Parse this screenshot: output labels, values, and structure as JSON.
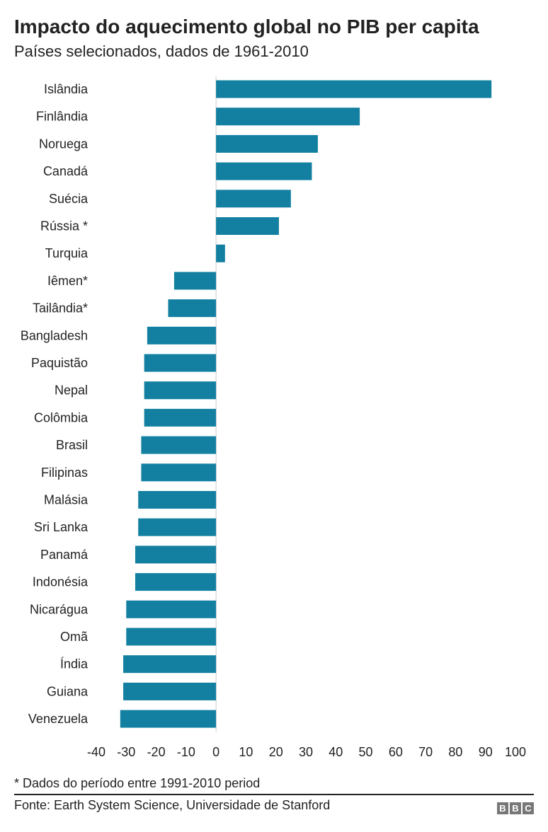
{
  "chart_data": {
    "type": "bar",
    "orientation": "horizontal",
    "title": "Impacto do aquecimento global no PIB per capita",
    "subtitle": "Países selecionados, dados de 1961-2010",
    "categories": [
      "Islândia",
      "Finlândia",
      "Noruega",
      "Canadá",
      "Suécia",
      "Rússia *",
      "Turquia",
      "Iêmen*",
      "Tailândia*",
      "Bangladesh",
      "Paquistão",
      "Nepal",
      "Colômbia",
      "Brasil",
      "Filipinas",
      "Malásia",
      "Sri Lanka",
      "Panamá",
      "Indonésia",
      "Nicarágua",
      "Omã",
      "Índia",
      "Guiana",
      "Venezuela"
    ],
    "values": [
      92,
      48,
      34,
      32,
      25,
      21,
      3,
      -14,
      -16,
      -23,
      -24,
      -24,
      -24,
      -25,
      -25,
      -26,
      -26,
      -27,
      -27,
      -30,
      -30,
      -31,
      -31,
      -32
    ],
    "xlim": [
      -40,
      100
    ],
    "xticks": [
      "-40",
      "-30",
      "-20",
      "-10",
      "0",
      "10",
      "20",
      "30",
      "40",
      "50",
      "60",
      "70",
      "80",
      "90",
      "100"
    ],
    "xlabel": "",
    "ylabel": "",
    "grid": false,
    "bar_color": "#1380A1"
  },
  "footer": {
    "note": "* Dados do período entre 1991-2010 period",
    "source": "Fonte: Earth System Science, Universidade de Stanford",
    "logo": [
      "B",
      "B",
      "C"
    ]
  }
}
